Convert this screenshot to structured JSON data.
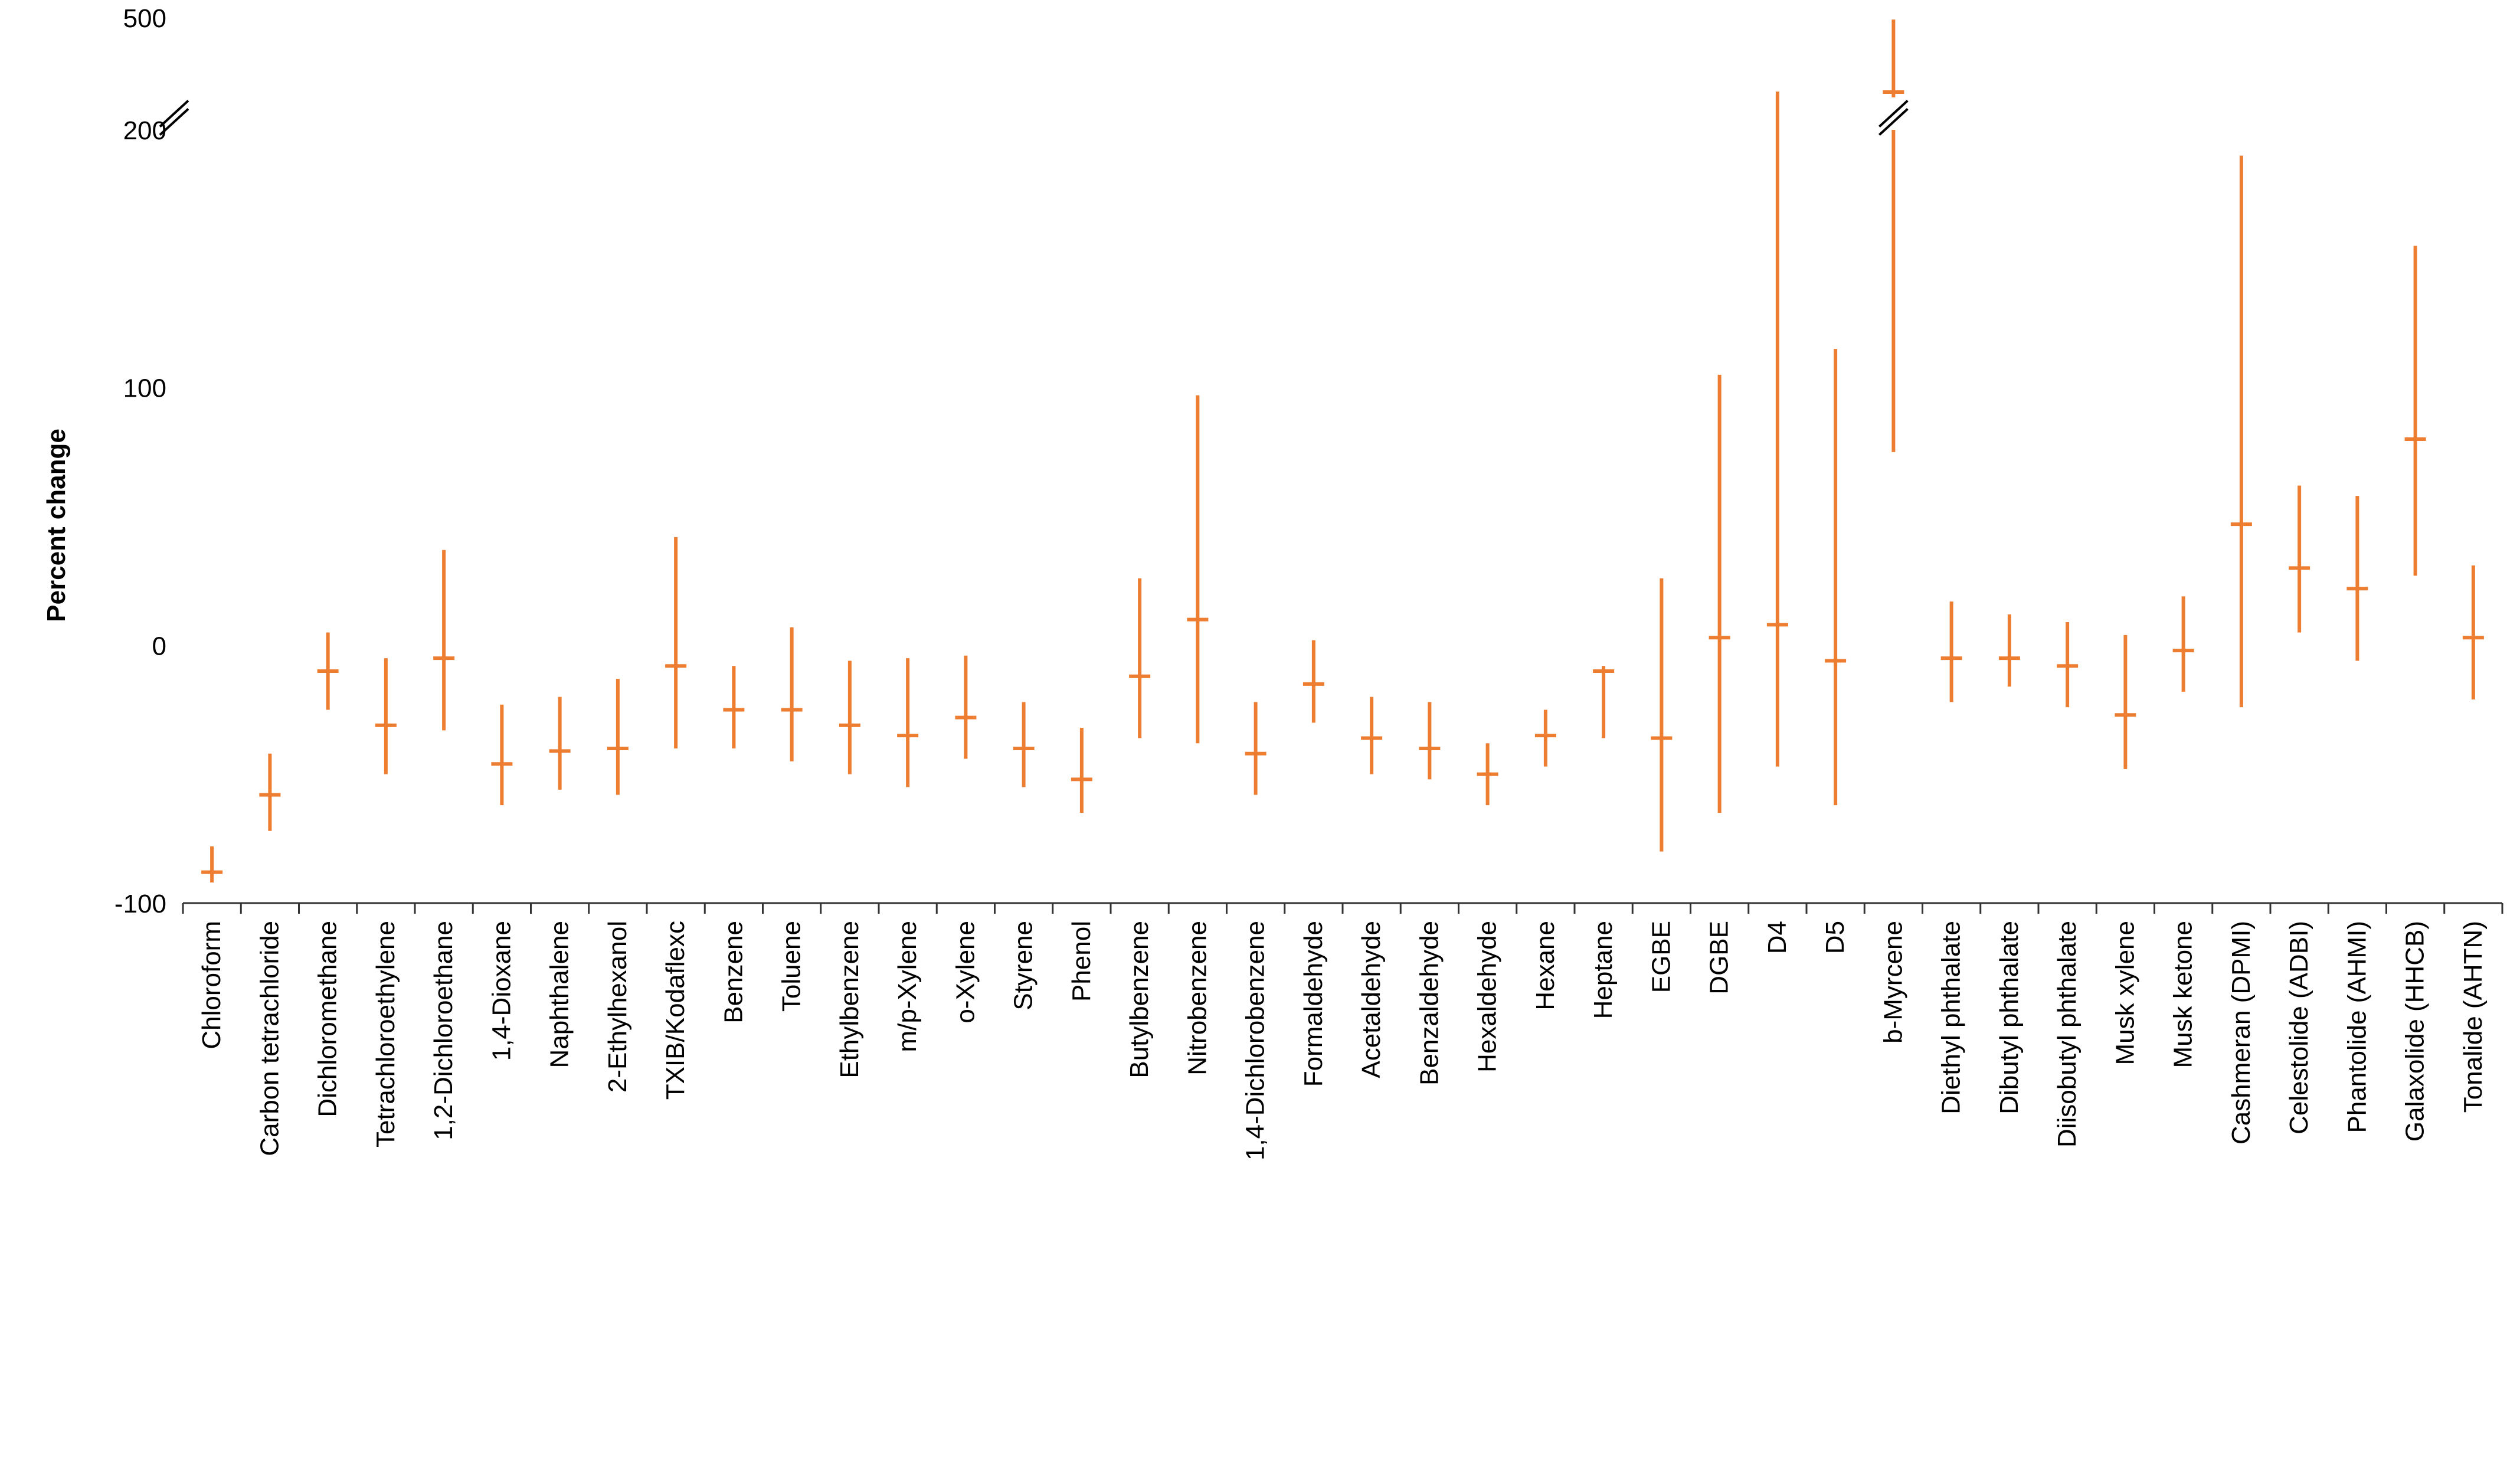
{
  "chart": {
    "type": "error-bar",
    "background_color": "#ffffff",
    "series_color": "#ed7d31",
    "axis_color": "#333333",
    "text_color": "#000000",
    "ylabel": "Percent change",
    "ylabel_fontsize": 44,
    "ylabel_fontweight": "bold",
    "ytick_fontsize": 44,
    "xtick_fontsize": 44,
    "y_ticks": [
      -100,
      0,
      100,
      200,
      500
    ],
    "ylim": [
      -100,
      500
    ],
    "line_width": 6,
    "marker_halfwidth": 18,
    "has_axis_break": true,
    "categories": [
      {
        "label": "Chloroform",
        "point": -88,
        "low": -92,
        "high": -78
      },
      {
        "label": "Carbon tetrachloride",
        "point": -58,
        "low": -72,
        "high": -42
      },
      {
        "label": "Dichloromethane",
        "point": -10,
        "low": -25,
        "high": 5
      },
      {
        "label": "Tetrachloroethylene",
        "point": -31,
        "low": -50,
        "high": -5
      },
      {
        "label": "1,2-Dichloroethane",
        "point": -5,
        "low": -33,
        "high": 37
      },
      {
        "label": "1,4-Dioxane",
        "point": -46,
        "low": -62,
        "high": -23
      },
      {
        "label": "Naphthalene",
        "point": -41,
        "low": -56,
        "high": -20
      },
      {
        "label": "2-Ethylhexanol",
        "point": -40,
        "low": -58,
        "high": -13
      },
      {
        "label": "TXIB/Kodaflexc",
        "point": -8,
        "low": -40,
        "high": 42
      },
      {
        "label": "Benzene",
        "point": -25,
        "low": -40,
        "high": -8
      },
      {
        "label": "Toluene",
        "point": -25,
        "low": -45,
        "high": 7
      },
      {
        "label": "Ethylbenzene",
        "point": -31,
        "low": -50,
        "high": -6
      },
      {
        "label": "m/p-Xylene",
        "point": -35,
        "low": -55,
        "high": -5
      },
      {
        "label": "o-Xylene",
        "point": -28,
        "low": -44,
        "high": -4
      },
      {
        "label": "Styrene",
        "point": -40,
        "low": -55,
        "high": -22
      },
      {
        "label": "Phenol",
        "point": -52,
        "low": -65,
        "high": -32
      },
      {
        "label": "Butylbenzene",
        "point": -12,
        "low": -36,
        "high": 26
      },
      {
        "label": "Nitrobenzene",
        "point": 10,
        "low": -38,
        "high": 97
      },
      {
        "label": "1,4-Dichlorobenzene",
        "point": -42,
        "low": -58,
        "high": -22
      },
      {
        "label": "Formaldehyde",
        "point": -15,
        "low": -30,
        "high": 2
      },
      {
        "label": "Acetaldehyde",
        "point": -36,
        "low": -50,
        "high": -20
      },
      {
        "label": "Benzaldehyde",
        "point": -40,
        "low": -52,
        "high": -22
      },
      {
        "label": "Hexaldehyde",
        "point": -50,
        "low": -62,
        "high": -38
      },
      {
        "label": "Hexane",
        "point": -35,
        "low": -47,
        "high": -25
      },
      {
        "label": "Heptane",
        "point": -10,
        "low": -36,
        "high": -8
      },
      {
        "label": "EGBE",
        "point": -36,
        "low": -80,
        "high": 26
      },
      {
        "label": "DGBE",
        "point": 3,
        "low": -65,
        "high": 105
      },
      {
        "label": "D4",
        "point": 8,
        "low": -47,
        "high": 222
      },
      {
        "label": "D5",
        "point": -6,
        "low": -62,
        "high": 115
      },
      {
        "label": "b-Myrcene",
        "point": 220,
        "low": 75,
        "high": 493,
        "break": true
      },
      {
        "label": "Diethyl phthalate",
        "point": -5,
        "low": -22,
        "high": 17
      },
      {
        "label": "Dibutyl phthalate",
        "point": -5,
        "low": -16,
        "high": 12
      },
      {
        "label": "Diisobutyl phthalate",
        "point": -8,
        "low": -24,
        "high": 9
      },
      {
        "label": "Musk xylene",
        "point": -27,
        "low": -48,
        "high": 4
      },
      {
        "label": "Musk ketone",
        "point": -2,
        "low": -18,
        "high": 19
      },
      {
        "label": "Cashmeran (DPMI)",
        "point": 47,
        "low": -24,
        "high": 190
      },
      {
        "label": "Celestolide (ADBI)",
        "point": 30,
        "low": 5,
        "high": 62
      },
      {
        "label": "Phantolide (AHMI)",
        "point": 22,
        "low": -6,
        "high": 58
      },
      {
        "label": "Galaxolide (HHCB)",
        "point": 80,
        "low": 27,
        "high": 155
      },
      {
        "label": "Tonalide (AHTN)",
        "point": 3,
        "low": -21,
        "high": 31
      }
    ]
  }
}
